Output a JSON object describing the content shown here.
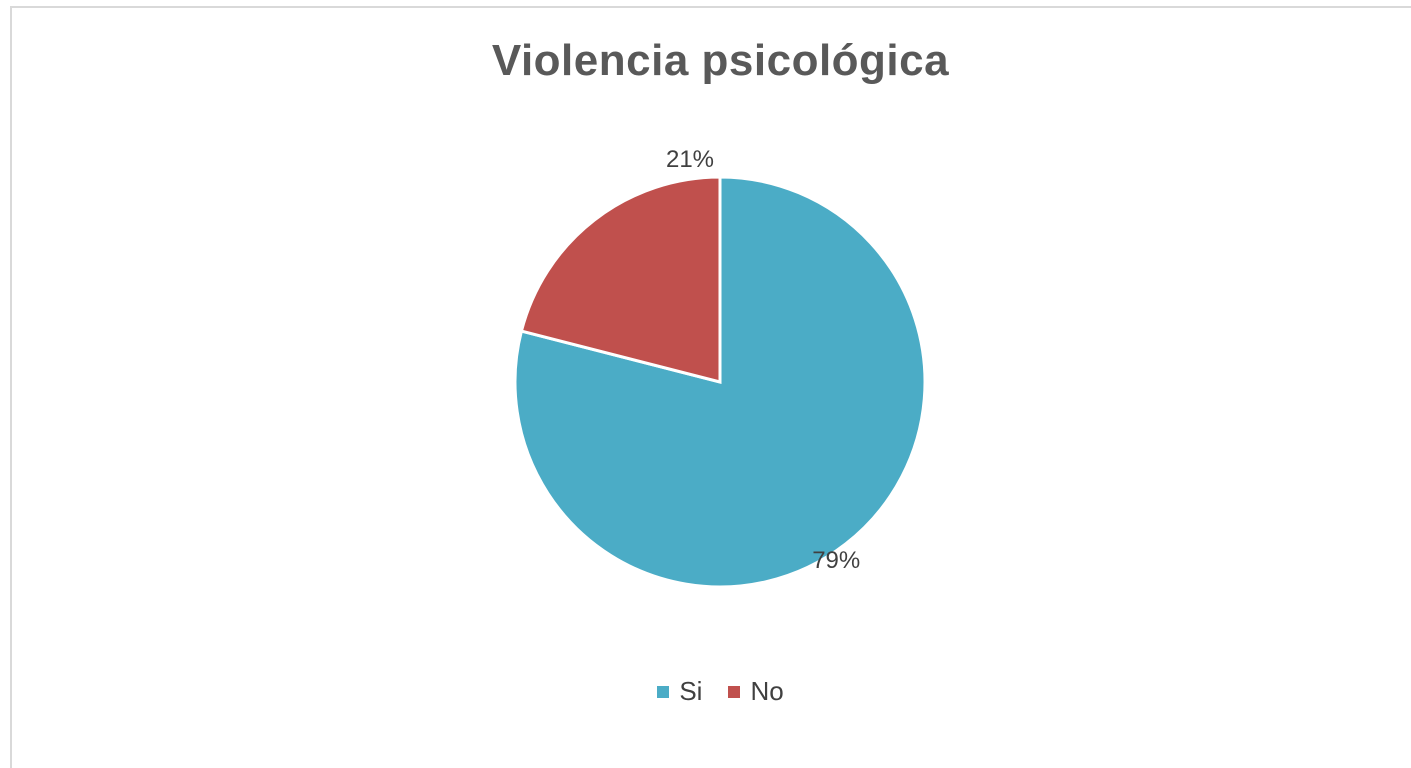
{
  "chart_data": {
    "type": "pie",
    "title": "Violencia psicológica",
    "categories": [
      "Si",
      "No"
    ],
    "values": [
      79,
      21
    ],
    "data_labels": [
      "79%",
      "21%"
    ],
    "colors": [
      "#4bacc6",
      "#c0504d"
    ],
    "legend_position": "bottom",
    "start_angle": "12 o'clock, clockwise"
  }
}
